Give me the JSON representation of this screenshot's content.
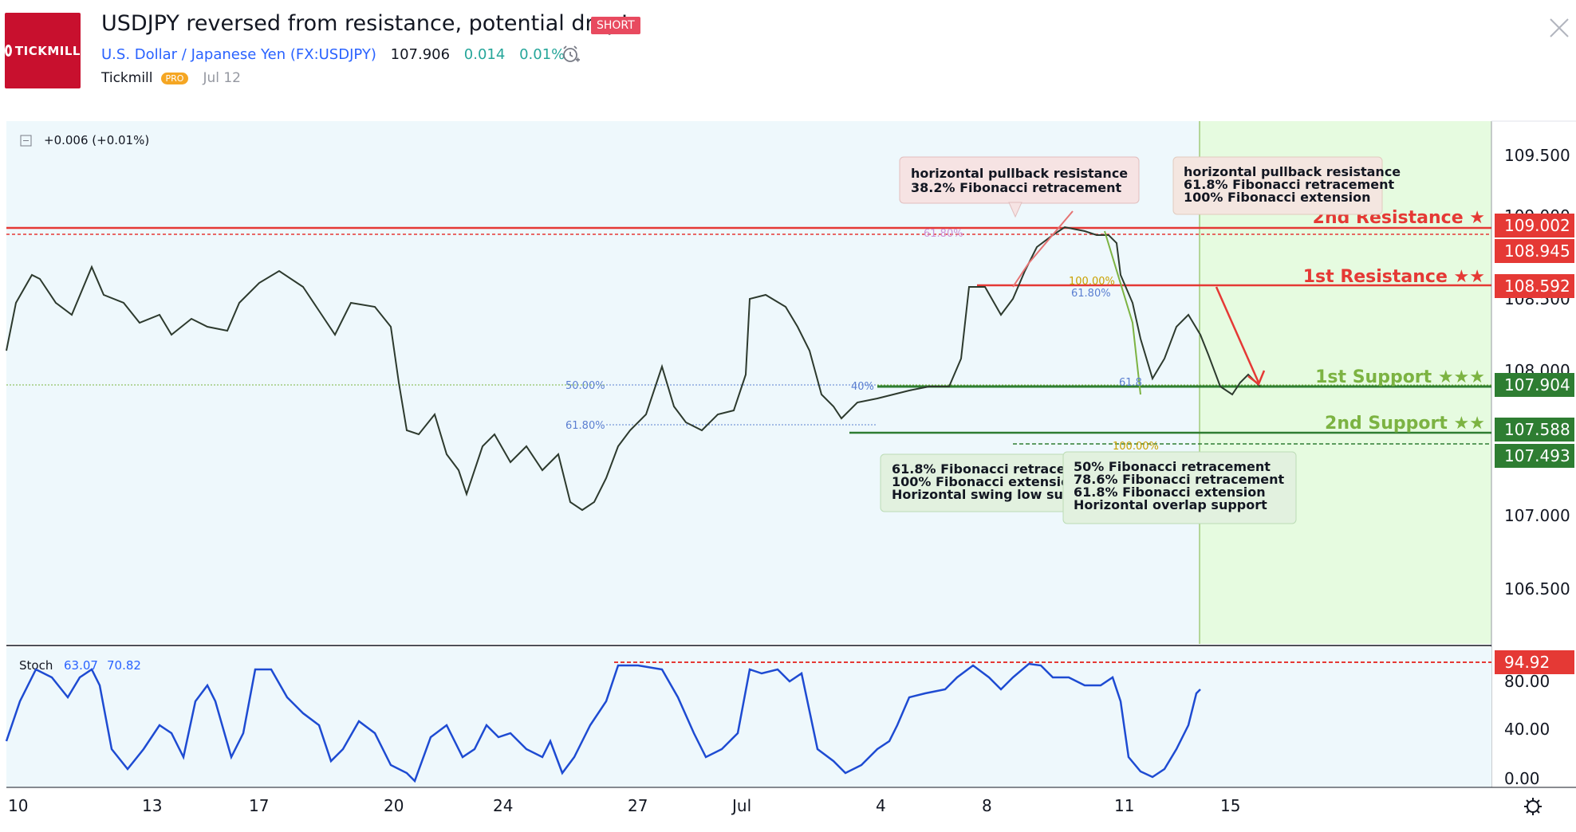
{
  "header": {
    "logo_text": "TICKMILL",
    "title": "USDJPY reversed from resistance, potential drop!",
    "badge": "SHORT",
    "symbol_name": "U.S. Dollar / Japanese Yen",
    "symbol_code": "(FX:USDJPY)",
    "last_price": "107.906",
    "change": "0.014",
    "change_pct": "0.01%",
    "author": "Tickmill",
    "author_badge": "PRO",
    "date": "Jul 12"
  },
  "chart": {
    "legend_change": "+0.006 (+0.01%)",
    "price_axis_ticks": [
      "109.500",
      "109.000",
      "108.500",
      "108.000",
      "107.000",
      "106.500"
    ],
    "price_labels": [
      {
        "value": "109.002",
        "color": "#e53935"
      },
      {
        "value": "108.945",
        "color": "#e53935"
      },
      {
        "value": "108.592",
        "color": "#e53935"
      },
      {
        "value": "107.904",
        "color": "#2e7d32"
      },
      {
        "value": "107.588",
        "color": "#2e7d32"
      },
      {
        "value": "107.493",
        "color": "#2e7d32"
      }
    ],
    "levels": {
      "r2": "2nd Resistance ★",
      "r1": "1st Resistance ★★",
      "s1": "1st Support ★★★",
      "s2": "2nd Support ★★"
    },
    "fib_labels": [
      "61.80%",
      "100.00%",
      "61.80%",
      "50.00%",
      "61.80%",
      "100.00%",
      "40%",
      "61.8"
    ],
    "callouts": {
      "top_mid": [
        "horizontal pullback resistance",
        "38.2% Fibonacci retracement"
      ],
      "top_right": [
        "horizontal pullback resistance",
        "61.8% Fibonacci retracement",
        "100% Fibonacci extension"
      ],
      "bottom_left": [
        "61.8% Fibonacci retracement",
        "100% Fibonacci extension",
        "Horizontal swing low support"
      ],
      "bottom_right": [
        "50% Fibonacci retracement",
        "78.6% Fibonacci retracement",
        "61.8% Fibonacci extension",
        "Horizontal overlap support"
      ]
    },
    "stoch": {
      "label": "Stoch",
      "k": "63.07",
      "d": "70.82",
      "level_label": "94.92",
      "ticks": [
        "80.00",
        "40.00",
        "0.00"
      ]
    },
    "x_labels": [
      "10",
      "13",
      "17",
      "20",
      "24",
      "27",
      "Jul",
      "4",
      "8",
      "11",
      "15"
    ],
    "colors": {
      "resistance": "#e53935",
      "support": "#2e7d32",
      "stoch_line": "#1e4bd2",
      "bg": "#eef8fc",
      "forecast_bg": "#e6fbe0"
    }
  }
}
